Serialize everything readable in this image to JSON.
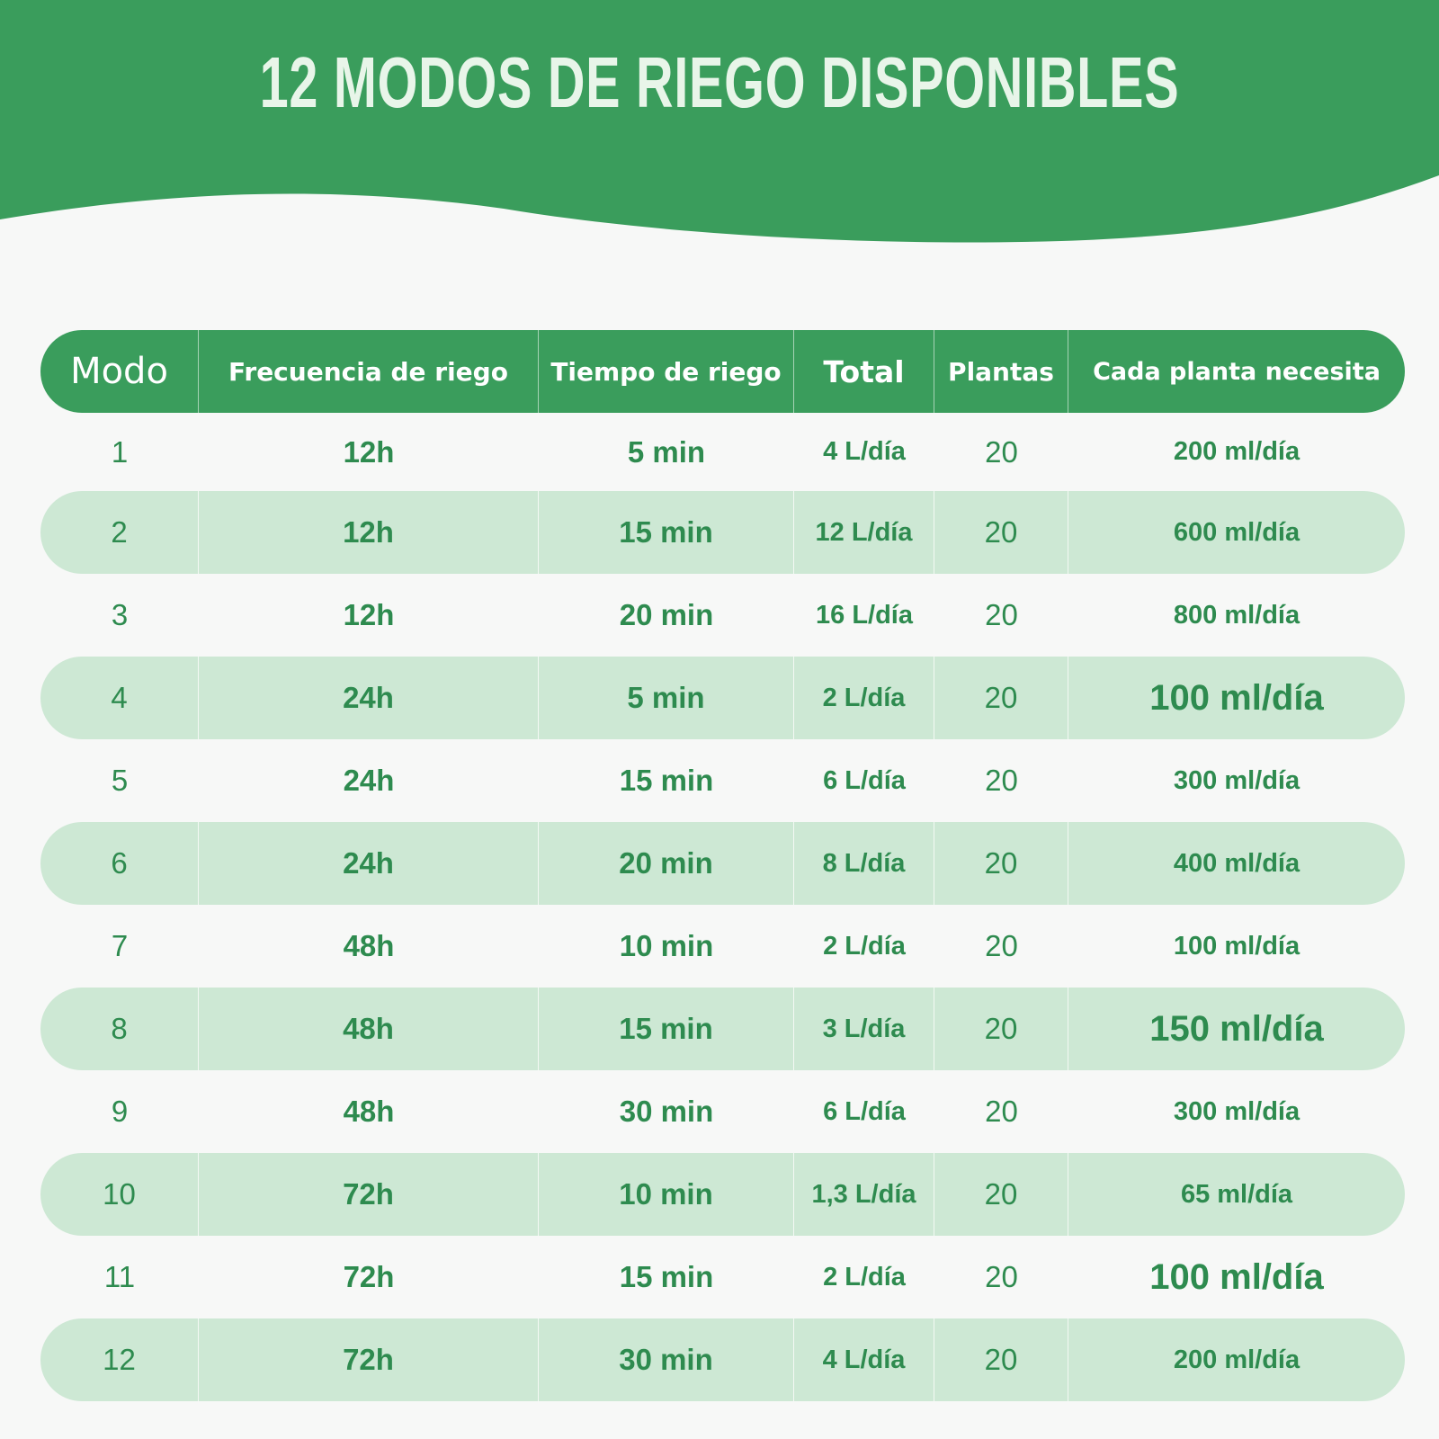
{
  "title": "12 MODOS DE RIEGO DISPONIBLES",
  "colors": {
    "banner_green": "#3a9d5c",
    "row_shade": "#cde8d4",
    "text_green": "#2e8b4f",
    "background": "#f7f8f7"
  },
  "table": {
    "headers": {
      "modo": "Modo",
      "frecuencia": "Frecuencia de riego",
      "tiempo": "Tiempo de riego",
      "total": "Total",
      "plantas": "Plantas",
      "cada_planta": "Cada planta necesita"
    },
    "rows": [
      {
        "modo": "1",
        "frecuencia": "12h",
        "tiempo": "5 min",
        "total": "4 L/día",
        "plantas": "20",
        "cada_planta": "200 ml/día"
      },
      {
        "modo": "2",
        "frecuencia": "12h",
        "tiempo": "15 min",
        "total": "12 L/día",
        "plantas": "20",
        "cada_planta": "600 ml/día"
      },
      {
        "modo": "3",
        "frecuencia": "12h",
        "tiempo": "20 min",
        "total": "16 L/día",
        "plantas": "20",
        "cada_planta": "800 ml/día"
      },
      {
        "modo": "4",
        "frecuencia": "24h",
        "tiempo": "5 min",
        "total": "2 L/día",
        "plantas": "20",
        "cada_planta": "100 ml/día"
      },
      {
        "modo": "5",
        "frecuencia": "24h",
        "tiempo": "15 min",
        "total": "6 L/día",
        "plantas": "20",
        "cada_planta": "300 ml/día"
      },
      {
        "modo": "6",
        "frecuencia": "24h",
        "tiempo": "20 min",
        "total": "8 L/día",
        "plantas": "20",
        "cada_planta": "400 ml/día"
      },
      {
        "modo": "7",
        "frecuencia": "48h",
        "tiempo": "10 min",
        "total": "2 L/día",
        "plantas": "20",
        "cada_planta": "100 ml/día"
      },
      {
        "modo": "8",
        "frecuencia": "48h",
        "tiempo": "15 min",
        "total": "3 L/día",
        "plantas": "20",
        "cada_planta": "150 ml/día"
      },
      {
        "modo": "9",
        "frecuencia": "48h",
        "tiempo": "30 min",
        "total": "6 L/día",
        "plantas": "20",
        "cada_planta": "300 ml/día"
      },
      {
        "modo": "10",
        "frecuencia": "72h",
        "tiempo": "10 min",
        "total": "1,3 L/día",
        "plantas": "20",
        "cada_planta": "65 ml/día"
      },
      {
        "modo": "11",
        "frecuencia": "72h",
        "tiempo": "15 min",
        "total": "2 L/día",
        "plantas": "20",
        "cada_planta": "100 ml/día"
      },
      {
        "modo": "12",
        "frecuencia": "72h",
        "tiempo": "30 min",
        "total": "4 L/día",
        "plantas": "20",
        "cada_planta": "200 ml/día"
      }
    ]
  }
}
